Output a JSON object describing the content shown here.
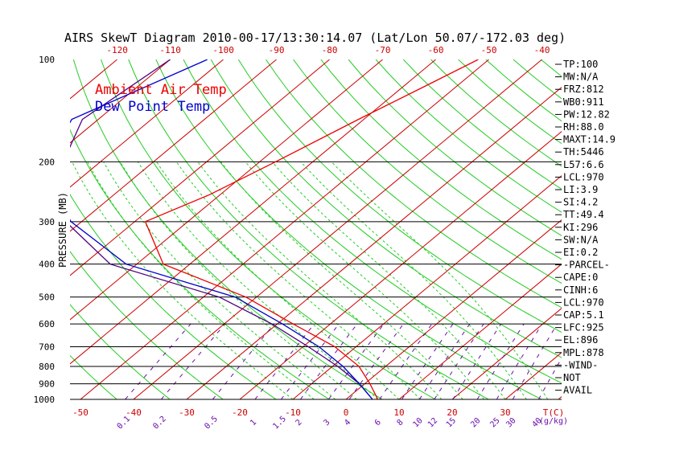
{
  "chart_data": {
    "type": "skewt",
    "title": "AIRS SkewT Diagram 2010-00-17/13:30:14.07 (Lat/Lon 50.07/-172.03 deg)",
    "ylabel": "PRESSURE (MB)",
    "pressure_ticks": [
      "100",
      "200",
      "300",
      "400",
      "500",
      "600",
      "700",
      "800",
      "900",
      "1000"
    ],
    "isobar_levels": [
      200,
      300,
      400,
      500,
      600,
      700,
      800,
      900,
      1000
    ],
    "top_temp_ticks": [
      "-120",
      "-110",
      "-100",
      "-90",
      "-80",
      "-70",
      "-60",
      "-50",
      "-40"
    ],
    "bottom_temp_ticks": [
      "-50",
      "-40",
      "-30",
      "-20",
      "-10",
      "0",
      "10",
      "20",
      "30"
    ],
    "bottom_temp_unit": "T(C)",
    "mixing_ratio_ticks": [
      "0.1",
      "0.2",
      "0.5",
      "1",
      "1.5",
      "2",
      "3",
      "4",
      "6",
      "8",
      "10",
      "12",
      "15",
      "20",
      "25",
      "30",
      "40"
    ],
    "mixing_ratio_unit": "(g/kg)",
    "legend": [
      {
        "label": "Ambient Air Temp",
        "color": "#ee0000"
      },
      {
        "label": "Dew Point Temp",
        "color": "#0000cc"
      }
    ],
    "series": [
      {
        "name": "Ambient Air Temp",
        "color": "#ee0000",
        "points": [
          {
            "p": 100,
            "t": -52
          },
          {
            "p": 120,
            "t": -56
          },
          {
            "p": 150,
            "t": -61
          },
          {
            "p": 200,
            "t": -67
          },
          {
            "p": 250,
            "t": -72
          },
          {
            "p": 300,
            "t": -78
          },
          {
            "p": 400,
            "t": -65
          },
          {
            "p": 500,
            "t": -42
          },
          {
            "p": 600,
            "t": -27
          },
          {
            "p": 700,
            "t": -14
          },
          {
            "p": 800,
            "t": -5
          },
          {
            "p": 900,
            "t": 1
          },
          {
            "p": 1000,
            "t": 6
          }
        ]
      },
      {
        "name": "Dew Point Temp",
        "color": "#0000cc",
        "points": [
          {
            "p": 100,
            "t": -103
          },
          {
            "p": 150,
            "t": -115
          },
          {
            "p": 200,
            "t": -110
          },
          {
            "p": 250,
            "t": -101
          },
          {
            "p": 300,
            "t": -92
          },
          {
            "p": 400,
            "t": -72
          },
          {
            "p": 500,
            "t": -44
          },
          {
            "p": 600,
            "t": -29
          },
          {
            "p": 700,
            "t": -17
          },
          {
            "p": 800,
            "t": -8
          },
          {
            "p": 900,
            "t": -1
          },
          {
            "p": 1000,
            "t": 5
          }
        ]
      },
      {
        "name": "Parcel",
        "color": "#4b0082",
        "points": [
          {
            "p": 100,
            "t": -110
          },
          {
            "p": 150,
            "t": -113
          },
          {
            "p": 200,
            "t": -107
          },
          {
            "p": 250,
            "t": -100
          },
          {
            "p": 300,
            "t": -93
          },
          {
            "p": 400,
            "t": -75
          },
          {
            "p": 500,
            "t": -47
          },
          {
            "p": 600,
            "t": -31
          },
          {
            "p": 700,
            "t": -19
          },
          {
            "p": 800,
            "t": -9
          },
          {
            "p": 900,
            "t": -1
          },
          {
            "p": 1000,
            "t": 5
          }
        ]
      }
    ],
    "indices": [
      "TP:100",
      "MW:N/A",
      "FRZ:812",
      "WB0:911",
      "PW:12.82",
      "RH:88.0",
      "MAXT:14.9",
      "TH:5446",
      "L57:6.6",
      "LCL:970",
      "LI:3.9",
      "SI:4.2",
      "TT:49.4",
      "KI:296",
      "SW:N/A",
      "EI:0.2",
      "-PARCEL-",
      "CAPE:0",
      "CINH:6",
      "LCL:970",
      "CAP:5.1",
      "LFC:925",
      "EL:896",
      "MPL:878",
      "-WIND-",
      "NOT",
      "AVAIL"
    ]
  }
}
